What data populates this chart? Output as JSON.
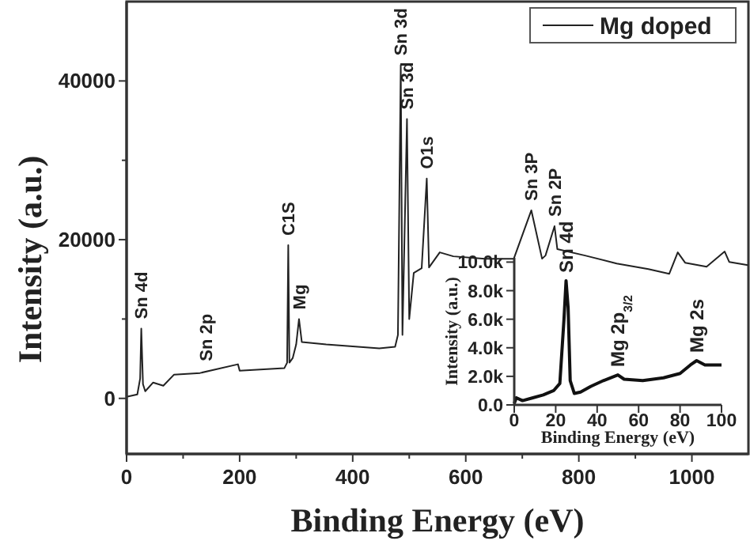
{
  "chart_data": [
    {
      "type": "line",
      "xlabel": "Binding Energy (eV)",
      "ylabel": "Intensity (a.u.)",
      "legend": "top right",
      "xlim": [
        0,
        1100
      ],
      "ylim": [
        -7000,
        50000
      ],
      "xticks": [
        0,
        {
          "value": 100,
          "label": null
        },
        200,
        {
          "value": 300,
          "label": null
        },
        400,
        {
          "value": 500,
          "label": null
        },
        600,
        {
          "value": 700,
          "label": null
        },
        800,
        {
          "value": 900,
          "label": null
        },
        1000
      ],
      "yticks": [
        0,
        {
          "value": 10000,
          "label": null
        },
        20000,
        {
          "value": 30000,
          "label": null
        },
        40000
      ],
      "x": [
        0,
        19,
        24,
        26,
        29,
        33,
        47,
        65,
        84,
        130,
        197,
        200,
        279,
        284,
        286,
        288,
        294,
        300,
        305,
        310,
        353,
        447,
        475,
        480,
        485,
        488,
        496,
        500,
        508,
        522,
        531,
        535,
        554,
        578,
        634,
        685,
        716,
        735,
        741,
        757,
        762,
        811,
        867,
        923,
        960,
        975,
        988,
        1026,
        1058,
        1066,
        1099
      ],
      "series": [
        {
          "name": "Mg doped",
          "color": "#222222",
          "values": [
            200,
            500,
            2500,
            8800,
            1800,
            900,
            2000,
            1600,
            3000,
            3200,
            4300,
            3500,
            3800,
            4500,
            19300,
            4500,
            5100,
            6800,
            10000,
            7100,
            6800,
            6300,
            6500,
            8000,
            42000,
            8000,
            35200,
            10000,
            15800,
            16400,
            27700,
            16500,
            18400,
            17900,
            17600,
            17600,
            23700,
            17600,
            18000,
            21700,
            18800,
            18000,
            17000,
            16300,
            15700,
            18400,
            17100,
            16600,
            18500,
            17200,
            16800
          ]
        }
      ],
      "annotations": [
        {
          "text": "Sn 4d",
          "x": 26,
          "y": 8800
        },
        {
          "text": "Sn 2p",
          "x": 140,
          "y": 3500
        },
        {
          "text": "C1S",
          "x": 286,
          "y": 19300
        },
        {
          "text": "Mg",
          "x": 305,
          "y": 10000
        },
        {
          "text": "Sn 3d",
          "x": 485,
          "y": 42000
        },
        {
          "text": "Sn 3d",
          "x": 496,
          "y": 35200
        },
        {
          "text": "O1s",
          "x": 531,
          "y": 27700
        },
        {
          "text": "Sn 3P",
          "x": 716,
          "y": 23700
        },
        {
          "text": "Sn 2P",
          "x": 757,
          "y": 21700
        }
      ]
    },
    {
      "type": "line",
      "xlabel": "Binding Energy (eV)",
      "ylabel": "Intensity (a.u.)",
      "xlim": [
        0,
        100
      ],
      "ylim": [
        0,
        10300
      ],
      "xticks": [
        0,
        20,
        40,
        60,
        80,
        100
      ],
      "yticks": [
        {
          "value": 0,
          "label": "0.0"
        },
        {
          "value": 2000,
          "label": "2.0k"
        },
        {
          "value": 4000,
          "label": "4.0k"
        },
        {
          "value": 6000,
          "label": "6.0k"
        },
        {
          "value": 8000,
          "label": "8.0k"
        },
        {
          "value": 10000,
          "label": "10.0k"
        }
      ],
      "x": [
        0,
        1,
        4,
        9,
        14,
        19,
        22,
        24,
        25,
        26,
        27,
        29,
        32,
        37,
        43,
        50,
        53,
        62,
        72,
        80,
        85,
        88,
        92,
        100
      ],
      "series": [
        {
          "color": "#111111",
          "values": [
            100,
            500,
            300,
            500,
            700,
            1000,
            1500,
            6000,
            8700,
            6800,
            1700,
            800,
            900,
            1300,
            1700,
            2100,
            1800,
            1700,
            1900,
            2200,
            2800,
            3100,
            2800,
            2800
          ]
        }
      ],
      "annotations": [
        {
          "text": "Sn 4d",
          "x": 25,
          "y": 8700
        },
        {
          "text": "Mg 2p$_{3/2}$",
          "x": 50,
          "y": 2100
        },
        {
          "text": "Mg 2s",
          "x": 88,
          "y": 3100
        }
      ]
    }
  ]
}
